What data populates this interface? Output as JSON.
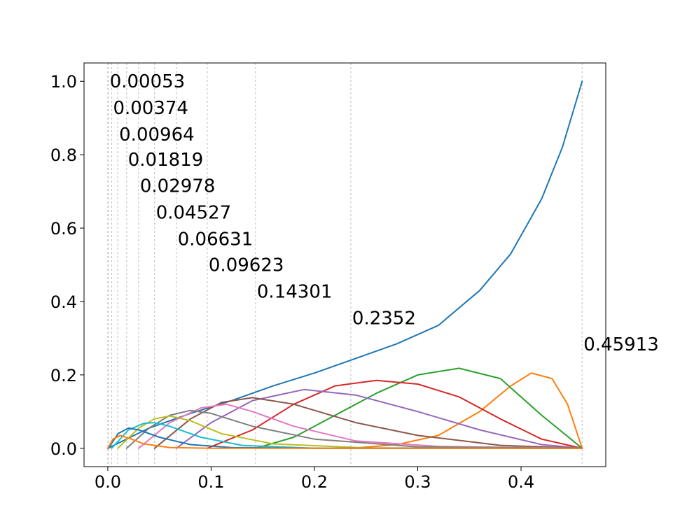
{
  "chart_data": {
    "type": "line",
    "title": "",
    "xlabel": "",
    "ylabel": "",
    "xlim": [
      -0.023,
      0.482
    ],
    "ylim": [
      -0.05,
      1.05
    ],
    "grid": false,
    "legend": "none",
    "xticks": [
      "0.0",
      "0.1",
      "0.2",
      "0.3",
      "0.4"
    ],
    "xtick_values": [
      0.0,
      0.1,
      0.2,
      0.3,
      0.4
    ],
    "yticks": [
      "0.0",
      "0.2",
      "0.4",
      "0.6",
      "0.8",
      "1.0"
    ],
    "ytick_values": [
      0.0,
      0.2,
      0.4,
      0.6,
      0.8,
      1.0
    ],
    "knots": [
      0.0,
      0.00053,
      0.00374,
      0.00964,
      0.01819,
      0.02978,
      0.04527,
      0.06631,
      0.09623,
      0.14301,
      0.2352,
      0.45913
    ],
    "annotations": [
      {
        "text": "0.00053",
        "x": 0.00053,
        "y": 1.0
      },
      {
        "text": "0.00374",
        "x": 0.00374,
        "y": 0.928
      },
      {
        "text": "0.00964",
        "x": 0.00964,
        "y": 0.856
      },
      {
        "text": "0.01819",
        "x": 0.01819,
        "y": 0.787
      },
      {
        "text": "0.02978",
        "x": 0.02978,
        "y": 0.715
      },
      {
        "text": "0.04527",
        "x": 0.04527,
        "y": 0.643
      },
      {
        "text": "0.06631",
        "x": 0.06631,
        "y": 0.571
      },
      {
        "text": "0.09623",
        "x": 0.09623,
        "y": 0.5
      },
      {
        "text": "0.14301",
        "x": 0.14301,
        "y": 0.428
      },
      {
        "text": "0.2352",
        "x": 0.2352,
        "y": 0.355
      },
      {
        "text": "0.45913",
        "x": 0.45913,
        "y": 0.284
      }
    ],
    "series": [
      {
        "color": "#1f77b4",
        "x": [
          0.0,
          0.04,
          0.08,
          0.12,
          0.16,
          0.2,
          0.24,
          0.28,
          0.32,
          0.36,
          0.39,
          0.42,
          0.44,
          0.45913
        ],
        "y": [
          0.0,
          0.055,
          0.095,
          0.13,
          0.17,
          0.205,
          0.245,
          0.285,
          0.335,
          0.43,
          0.53,
          0.68,
          0.82,
          1.0
        ]
      },
      {
        "color": "#ff7f0e",
        "x": [
          0.2352,
          0.28,
          0.32,
          0.36,
          0.39,
          0.41,
          0.43,
          0.445,
          0.45913
        ],
        "y": [
          0.0,
          0.01,
          0.035,
          0.1,
          0.17,
          0.205,
          0.19,
          0.12,
          0.0
        ]
      },
      {
        "color": "#2ca02c",
        "x": [
          0.14301,
          0.18,
          0.22,
          0.26,
          0.3,
          0.34,
          0.38,
          0.42,
          0.45913
        ],
        "y": [
          0.0,
          0.03,
          0.09,
          0.15,
          0.2,
          0.218,
          0.19,
          0.09,
          0.0
        ]
      },
      {
        "color": "#d62728",
        "x": [
          0.09623,
          0.14,
          0.18,
          0.22,
          0.26,
          0.3,
          0.34,
          0.38,
          0.42,
          0.45913
        ],
        "y": [
          0.0,
          0.05,
          0.12,
          0.17,
          0.185,
          0.175,
          0.14,
          0.08,
          0.025,
          0.0
        ]
      },
      {
        "color": "#9467bd",
        "x": [
          0.06631,
          0.1,
          0.14,
          0.19,
          0.24,
          0.3,
          0.36,
          0.42,
          0.45913
        ],
        "y": [
          0.0,
          0.07,
          0.13,
          0.16,
          0.145,
          0.1,
          0.05,
          0.01,
          0.0
        ]
      },
      {
        "color": "#8c564b",
        "x": [
          0.04527,
          0.08,
          0.11,
          0.14,
          0.18,
          0.24,
          0.3,
          0.38,
          0.45913
        ],
        "y": [
          0.0,
          0.08,
          0.125,
          0.138,
          0.12,
          0.07,
          0.035,
          0.008,
          0.0
        ]
      },
      {
        "color": "#e377c2",
        "x": [
          0.02978,
          0.06,
          0.09,
          0.115,
          0.14,
          0.18,
          0.24,
          0.32,
          0.45913
        ],
        "y": [
          0.0,
          0.07,
          0.11,
          0.12,
          0.1,
          0.06,
          0.02,
          0.005,
          0.0
        ]
      },
      {
        "color": "#7f7f7f",
        "x": [
          0.01819,
          0.04,
          0.06,
          0.08,
          0.1,
          0.14,
          0.2,
          0.3,
          0.45913
        ],
        "y": [
          0.0,
          0.055,
          0.09,
          0.103,
          0.095,
          0.06,
          0.025,
          0.004,
          0.0
        ]
      },
      {
        "color": "#bcbd22",
        "x": [
          0.00964,
          0.03,
          0.045,
          0.06,
          0.08,
          0.11,
          0.16,
          0.25,
          0.45913
        ],
        "y": [
          0.0,
          0.055,
          0.08,
          0.088,
          0.075,
          0.04,
          0.012,
          0.001,
          0.0
        ]
      },
      {
        "color": "#17becf",
        "x": [
          0.00374,
          0.02,
          0.035,
          0.045,
          0.06,
          0.09,
          0.13,
          0.2,
          0.45913
        ],
        "y": [
          0.0,
          0.05,
          0.068,
          0.07,
          0.06,
          0.03,
          0.008,
          0.0,
          0.0
        ]
      },
      {
        "color": "#1f77b4",
        "x": [
          0.00053,
          0.01,
          0.02,
          0.03,
          0.05,
          0.08,
          0.12,
          0.2,
          0.45913
        ],
        "y": [
          0.0,
          0.04,
          0.055,
          0.05,
          0.03,
          0.01,
          0.002,
          0.0,
          0.0
        ]
      },
      {
        "color": "#ff7f0e",
        "x": [
          0.0,
          0.005,
          0.012,
          0.02,
          0.035,
          0.06,
          0.1,
          0.45913
        ],
        "y": [
          0.0,
          0.025,
          0.035,
          0.028,
          0.012,
          0.002,
          0.0,
          0.0
        ]
      }
    ]
  }
}
